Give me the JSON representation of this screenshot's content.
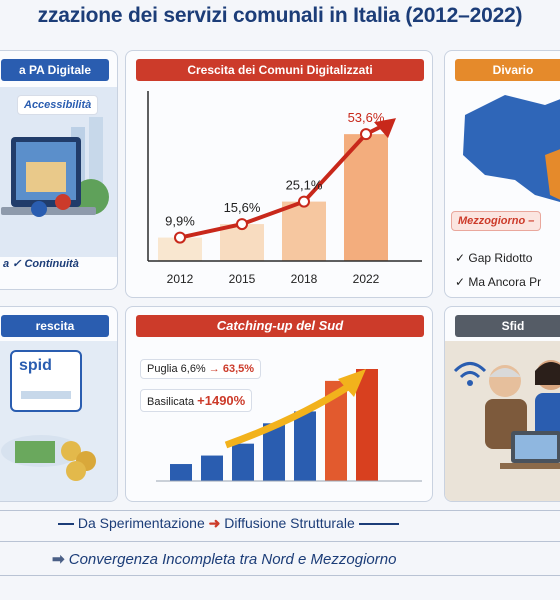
{
  "title": "zzazione dei servizi comunali in Italia (2012–2022)",
  "panels": {
    "pa_digitale": {
      "ribbon": "a PA Digitale",
      "badge": "Accessibilità",
      "caption": "a  ✓ Continuità"
    },
    "crescita_comuni": {
      "ribbon": "Crescita dei Comuni Digitalizzati",
      "chart_data": {
        "type": "line",
        "x": [
          "2012",
          "2015",
          "2018",
          "2022"
        ],
        "values": [
          9.9,
          15.6,
          25.1,
          53.6
        ],
        "labels": [
          "9,9%",
          "15,6%",
          "25,1%",
          "53,6%"
        ],
        "ylim": [
          0,
          60
        ]
      }
    },
    "divario": {
      "ribbon": "Divario",
      "badge": "Mezzogiorno –",
      "items": [
        "✓ Gap Ridotto",
        "✓ Ma Ancora Pr"
      ]
    },
    "crescita": {
      "ribbon": "rescita",
      "spid": "spid"
    },
    "catching_up": {
      "ribbon": "Catching-up del Sud",
      "facts": [
        {
          "region": "Puglia",
          "from": "6,6%",
          "arrow": "→",
          "to": "63,5%"
        },
        {
          "region": "Basilicata",
          "value": "+1490%"
        }
      ],
      "chart_data": {
        "type": "bar",
        "values": [
          1,
          1.5,
          2.2,
          3.4,
          4.1,
          5.9,
          6.6
        ]
      }
    },
    "sfide": {
      "ribbon": "Sfid"
    }
  },
  "footer": {
    "line1_left": "Da Sperimentazione",
    "line1_right": "Diffusione Strutturale",
    "line2": "Convergenza Incompleta tra Nord e Mezzogiorno"
  },
  "colors": {
    "navy": "#1c3d78",
    "red": "#cc3b2a",
    "blue": "#2a5db0",
    "orange": "#e58a2b"
  }
}
